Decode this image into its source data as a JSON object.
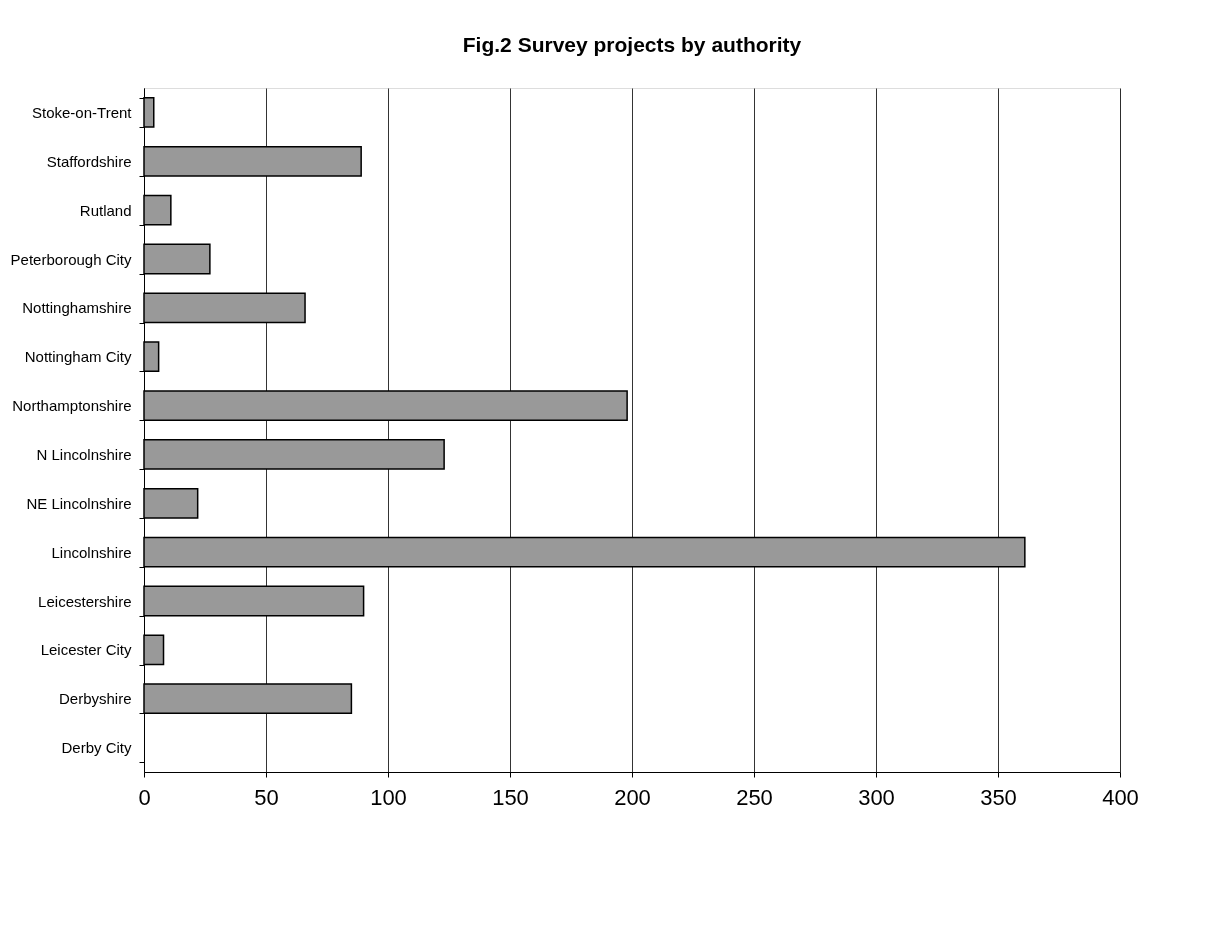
{
  "chart_data": {
    "type": "bar",
    "orientation": "horizontal",
    "title": "Fig.2 Survey projects by authority",
    "categories": [
      "Stoke-on-Trent",
      "Staffordshire",
      "Rutland",
      "Peterborough City",
      "Nottinghamshire",
      "Nottingham City",
      "Northamptonshire",
      "N Lincolnshire",
      "NE Lincolnshire",
      "Lincolnshire",
      "Leicestershire",
      "Leicester City",
      "Derbyshire",
      "Derby City"
    ],
    "values": [
      4,
      89,
      11,
      27,
      66,
      6,
      198,
      123,
      22,
      361,
      90,
      8,
      85,
      0
    ],
    "color": "#999999",
    "xlim": [
      0,
      400
    ],
    "xticks": [
      0,
      50,
      100,
      150,
      200,
      250,
      300,
      350,
      400
    ],
    "grid": "x"
  }
}
